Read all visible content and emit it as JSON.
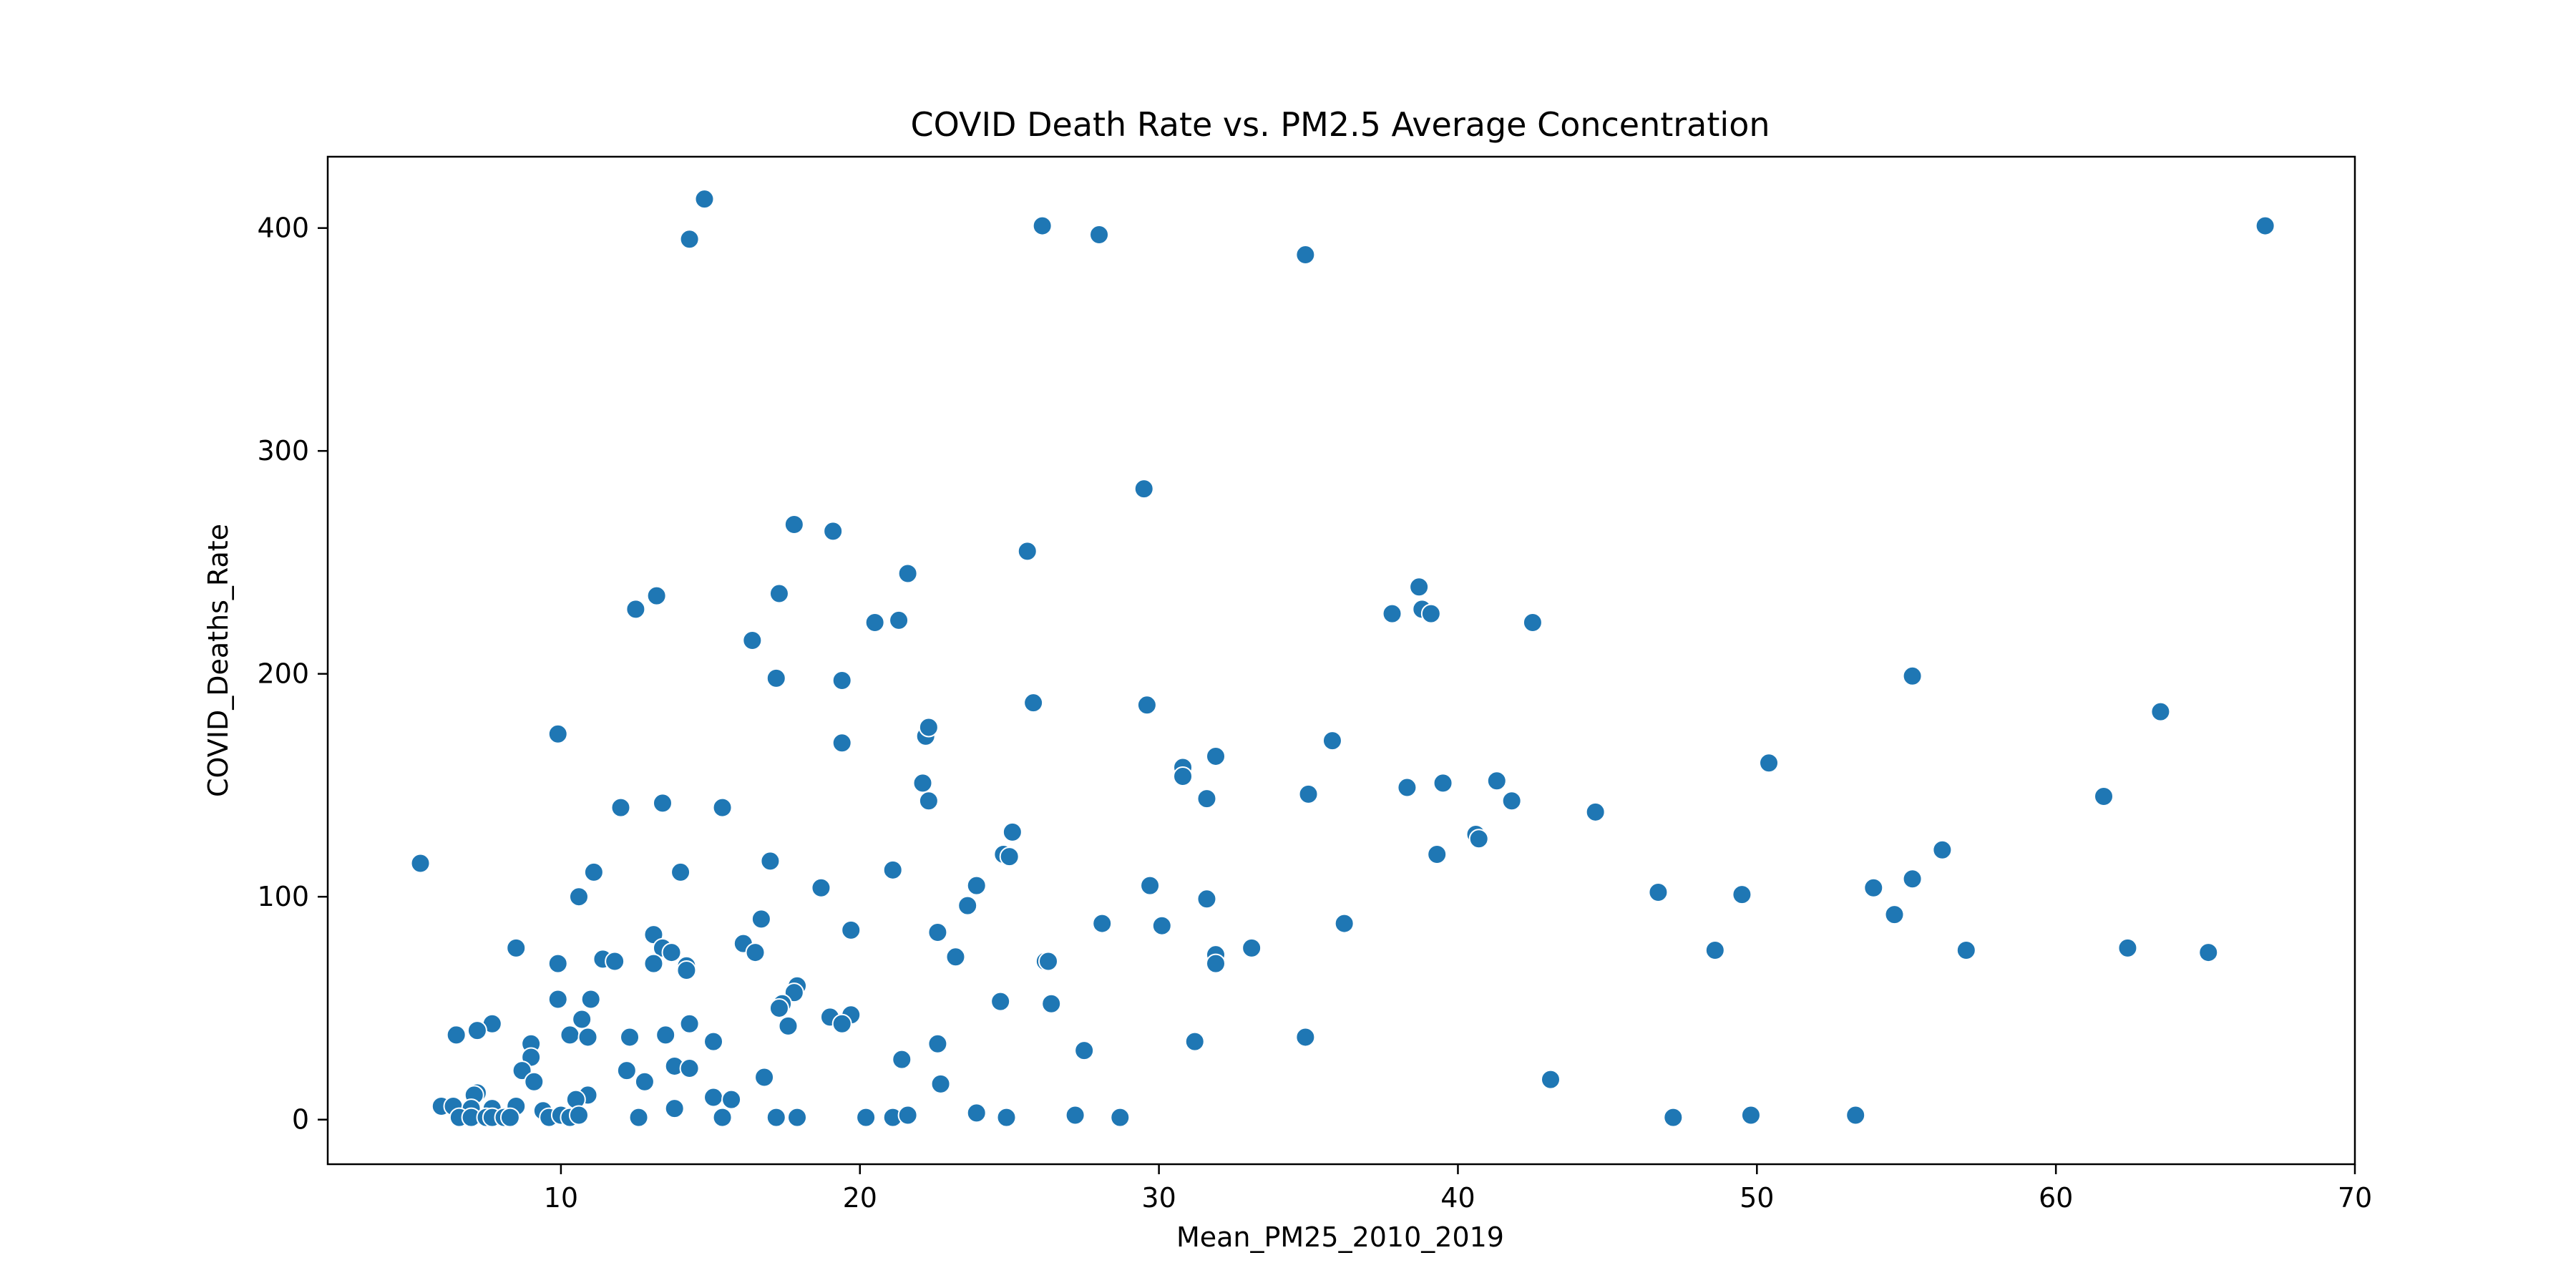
{
  "chart_data": {
    "type": "scatter",
    "title": "COVID Death Rate vs. PM2.5 Average Concentration",
    "xlabel": "Mean_PM25_2010_2019",
    "ylabel": "COVID_Deaths_Rate",
    "xlim": [
      2.2,
      70.0
    ],
    "ylim": [
      -20,
      432
    ],
    "xticks": [
      10,
      20,
      30,
      40,
      50,
      60,
      70
    ],
    "yticks": [
      0,
      100,
      200,
      300,
      400
    ],
    "grid": false,
    "legend": "none",
    "marker_color": "#1f77b4",
    "marker_edge_color": "#ffffff",
    "points": [
      [
        5.3,
        115
      ],
      [
        14.8,
        413
      ],
      [
        14.3,
        395
      ],
      [
        26.1,
        401
      ],
      [
        28.0,
        397
      ],
      [
        34.9,
        388
      ],
      [
        67.0,
        401
      ],
      [
        29.5,
        283
      ],
      [
        17.8,
        267
      ],
      [
        19.1,
        264
      ],
      [
        25.6,
        255
      ],
      [
        38.7,
        239
      ],
      [
        17.3,
        236
      ],
      [
        13.2,
        235
      ],
      [
        21.6,
        245
      ],
      [
        12.5,
        229
      ],
      [
        16.4,
        215
      ],
      [
        20.5,
        223
      ],
      [
        21.3,
        224
      ],
      [
        37.8,
        227
      ],
      [
        38.8,
        229
      ],
      [
        39.1,
        227
      ],
      [
        42.5,
        223
      ],
      [
        17.2,
        198
      ],
      [
        19.4,
        197
      ],
      [
        55.2,
        199
      ],
      [
        9.9,
        173
      ],
      [
        22.2,
        172
      ],
      [
        22.3,
        176
      ],
      [
        19.4,
        169
      ],
      [
        25.8,
        187
      ],
      [
        29.6,
        186
      ],
      [
        35.8,
        170
      ],
      [
        63.5,
        183
      ],
      [
        50.4,
        160
      ],
      [
        31.9,
        163
      ],
      [
        30.8,
        158
      ],
      [
        30.8,
        154
      ],
      [
        22.1,
        151
      ],
      [
        39.5,
        151
      ],
      [
        41.3,
        152
      ],
      [
        38.3,
        149
      ],
      [
        22.3,
        143
      ],
      [
        31.6,
        144
      ],
      [
        35.0,
        146
      ],
      [
        41.8,
        143
      ],
      [
        61.6,
        145
      ],
      [
        12.0,
        140
      ],
      [
        13.4,
        142
      ],
      [
        15.4,
        140
      ],
      [
        44.6,
        138
      ],
      [
        25.1,
        129
      ],
      [
        40.6,
        128
      ],
      [
        40.7,
        126
      ],
      [
        24.8,
        119
      ],
      [
        25.0,
        118
      ],
      [
        39.3,
        119
      ],
      [
        56.2,
        121
      ],
      [
        17.0,
        116
      ],
      [
        11.1,
        111
      ],
      [
        14.0,
        111
      ],
      [
        21.1,
        112
      ],
      [
        29.7,
        105
      ],
      [
        18.7,
        104
      ],
      [
        23.9,
        105
      ],
      [
        53.9,
        104
      ],
      [
        55.2,
        108
      ],
      [
        10.6,
        100
      ],
      [
        46.7,
        102
      ],
      [
        49.5,
        101
      ],
      [
        31.6,
        99
      ],
      [
        23.6,
        96
      ],
      [
        54.6,
        92
      ],
      [
        16.7,
        90
      ],
      [
        28.1,
        88
      ],
      [
        36.2,
        88
      ],
      [
        30.1,
        87
      ],
      [
        19.7,
        85
      ],
      [
        13.1,
        83
      ],
      [
        22.6,
        84
      ],
      [
        16.1,
        79
      ],
      [
        8.5,
        77
      ],
      [
        13.4,
        77
      ],
      [
        16.5,
        75
      ],
      [
        13.7,
        75
      ],
      [
        31.9,
        74
      ],
      [
        33.1,
        77
      ],
      [
        48.6,
        76
      ],
      [
        57.0,
        76
      ],
      [
        62.4,
        77
      ],
      [
        65.1,
        75
      ],
      [
        11.4,
        72
      ],
      [
        11.8,
        71
      ],
      [
        23.2,
        73
      ],
      [
        26.2,
        71
      ],
      [
        26.3,
        71
      ],
      [
        9.9,
        70
      ],
      [
        13.1,
        70
      ],
      [
        14.2,
        69
      ],
      [
        14.2,
        67
      ],
      [
        31.9,
        70
      ],
      [
        17.9,
        60
      ],
      [
        17.8,
        57
      ],
      [
        9.9,
        54
      ],
      [
        11.0,
        54
      ],
      [
        17.4,
        52
      ],
      [
        17.3,
        50
      ],
      [
        24.7,
        53
      ],
      [
        26.4,
        52
      ],
      [
        10.7,
        45
      ],
      [
        7.7,
        43
      ],
      [
        14.3,
        43
      ],
      [
        19.0,
        46
      ],
      [
        19.7,
        47
      ],
      [
        19.4,
        43
      ],
      [
        17.6,
        42
      ],
      [
        6.5,
        38
      ],
      [
        7.2,
        40
      ],
      [
        10.3,
        38
      ],
      [
        10.9,
        37
      ],
      [
        12.3,
        37
      ],
      [
        13.5,
        38
      ],
      [
        9.0,
        34
      ],
      [
        15.1,
        35
      ],
      [
        22.6,
        34
      ],
      [
        31.2,
        35
      ],
      [
        34.9,
        37
      ],
      [
        9.0,
        28
      ],
      [
        21.4,
        27
      ],
      [
        27.5,
        31
      ],
      [
        8.7,
        22
      ],
      [
        12.2,
        22
      ],
      [
        13.8,
        24
      ],
      [
        14.3,
        23
      ],
      [
        9.1,
        17
      ],
      [
        12.8,
        17
      ],
      [
        16.8,
        19
      ],
      [
        22.7,
        16
      ],
      [
        43.1,
        18
      ],
      [
        7.2,
        12
      ],
      [
        7.1,
        11
      ],
      [
        10.9,
        11
      ],
      [
        15.1,
        10
      ],
      [
        15.7,
        9
      ],
      [
        10.5,
        9
      ],
      [
        6.0,
        6
      ],
      [
        6.4,
        6
      ],
      [
        7.0,
        5
      ],
      [
        7.7,
        5
      ],
      [
        8.5,
        6
      ],
      [
        9.4,
        4
      ],
      [
        13.8,
        5
      ],
      [
        6.6,
        1
      ],
      [
        7.0,
        1
      ],
      [
        7.5,
        1
      ],
      [
        7.7,
        1
      ],
      [
        8.1,
        1
      ],
      [
        8.3,
        1
      ],
      [
        9.6,
        1
      ],
      [
        10.0,
        2
      ],
      [
        10.3,
        1
      ],
      [
        10.6,
        2
      ],
      [
        12.6,
        1
      ],
      [
        15.4,
        1
      ],
      [
        17.2,
        1
      ],
      [
        17.9,
        1
      ],
      [
        20.2,
        1
      ],
      [
        21.1,
        1
      ],
      [
        21.6,
        2
      ],
      [
        23.9,
        3
      ],
      [
        24.9,
        1
      ],
      [
        27.2,
        2
      ],
      [
        28.7,
        1
      ],
      [
        47.2,
        1
      ],
      [
        49.8,
        2
      ],
      [
        53.3,
        2
      ]
    ]
  }
}
